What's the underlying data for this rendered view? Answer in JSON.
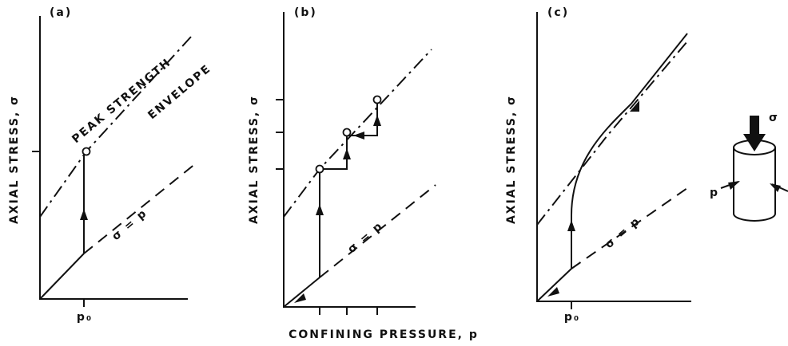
{
  "panels": [
    {
      "label": "(a)",
      "y_axis_label": "AXIAL STRESS, σ",
      "line_label": "σ = p",
      "annotations": [
        "PEAK STRENGTH",
        "ENVELOPE"
      ],
      "tick_label": "p₀"
    },
    {
      "label": "(b)",
      "y_axis_label": "AXIAL STRESS, σ",
      "line_label": "σ = p"
    },
    {
      "label": "(c)",
      "y_axis_label": "AXIAL STRESS, σ",
      "line_label": "σ = p",
      "tick_label": "p₀"
    }
  ],
  "x_axis_label": "CONFINING PRESSURE, p",
  "specimen": {
    "stress_label": "σ",
    "pressure_label": "p"
  }
}
